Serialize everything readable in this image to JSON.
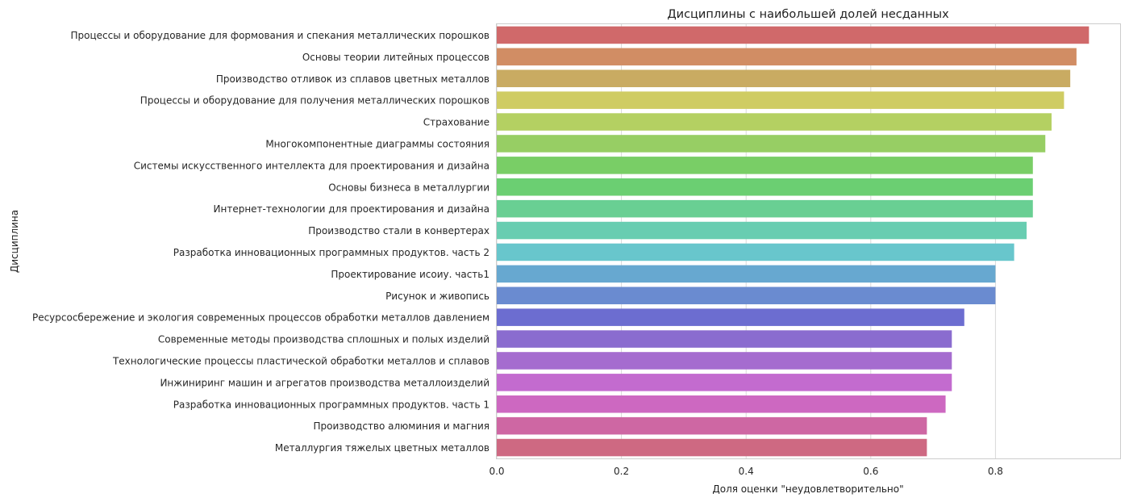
{
  "chart_data": {
    "type": "bar",
    "orientation": "horizontal",
    "title": "Дисциплины с наибольшей долей несданных",
    "xlabel": "Доля оценки \"неудовлетворительно\"",
    "ylabel": "Дисциплина",
    "xlim": [
      0,
      1.0
    ],
    "xticks": [
      "0.0",
      "0.2",
      "0.4",
      "0.6",
      "0.8"
    ],
    "xtick_values": [
      0.0,
      0.2,
      0.4,
      0.6,
      0.8
    ],
    "grid": "vertical",
    "palette": "hls",
    "categories": [
      "Процессы и оборудование для формования и спекания металлических порошков",
      "Основы теории литейных процессов",
      "Производство отливок из сплавов цветных металлов",
      "Процессы и оборудование для получения металлических порошков",
      "Страхование",
      "Многокомпонентные диаграммы состояния",
      "Системы искусственного интеллекта для проектирования и дизайна",
      "Основы бизнеса в металлургии",
      "Интернет-технологии для проектирования и дизайна",
      "Производство стали в конвертерах",
      "Разработка инновационных программных продуктов. часть 2",
      "Проектирование исоиу. часть1",
      "Рисунок и живопись",
      "Ресурсосбережение и экология современных процессов обработки металлов давлением",
      "Современные методы производства сплошных и полых изделий",
      "Технологические процессы пластической обработки металлов и сплавов",
      "Инжиниринг машин и агрегатов производства металлоизделий",
      "Разработка инновационных программных продуктов. часть 1",
      "Производство алюминия и магния",
      "Металлургия тяжелых цветных металлов"
    ],
    "values": [
      0.95,
      0.93,
      0.92,
      0.91,
      0.89,
      0.88,
      0.86,
      0.86,
      0.86,
      0.85,
      0.83,
      0.8,
      0.8,
      0.75,
      0.73,
      0.73,
      0.73,
      0.72,
      0.69,
      0.69
    ],
    "colors": [
      "#d0696a",
      "#d18d64",
      "#c9ab62",
      "#cfcc63",
      "#b4d062",
      "#97ce64",
      "#79ce66",
      "#6bcf72",
      "#69cf93",
      "#68cdb1",
      "#68c6cc",
      "#67a8d0",
      "#6a8bd0",
      "#6c6dd0",
      "#8a6ccf",
      "#a56ccf",
      "#c36bcf",
      "#cd68c1",
      "#ce67a3",
      "#ce6982"
    ]
  }
}
